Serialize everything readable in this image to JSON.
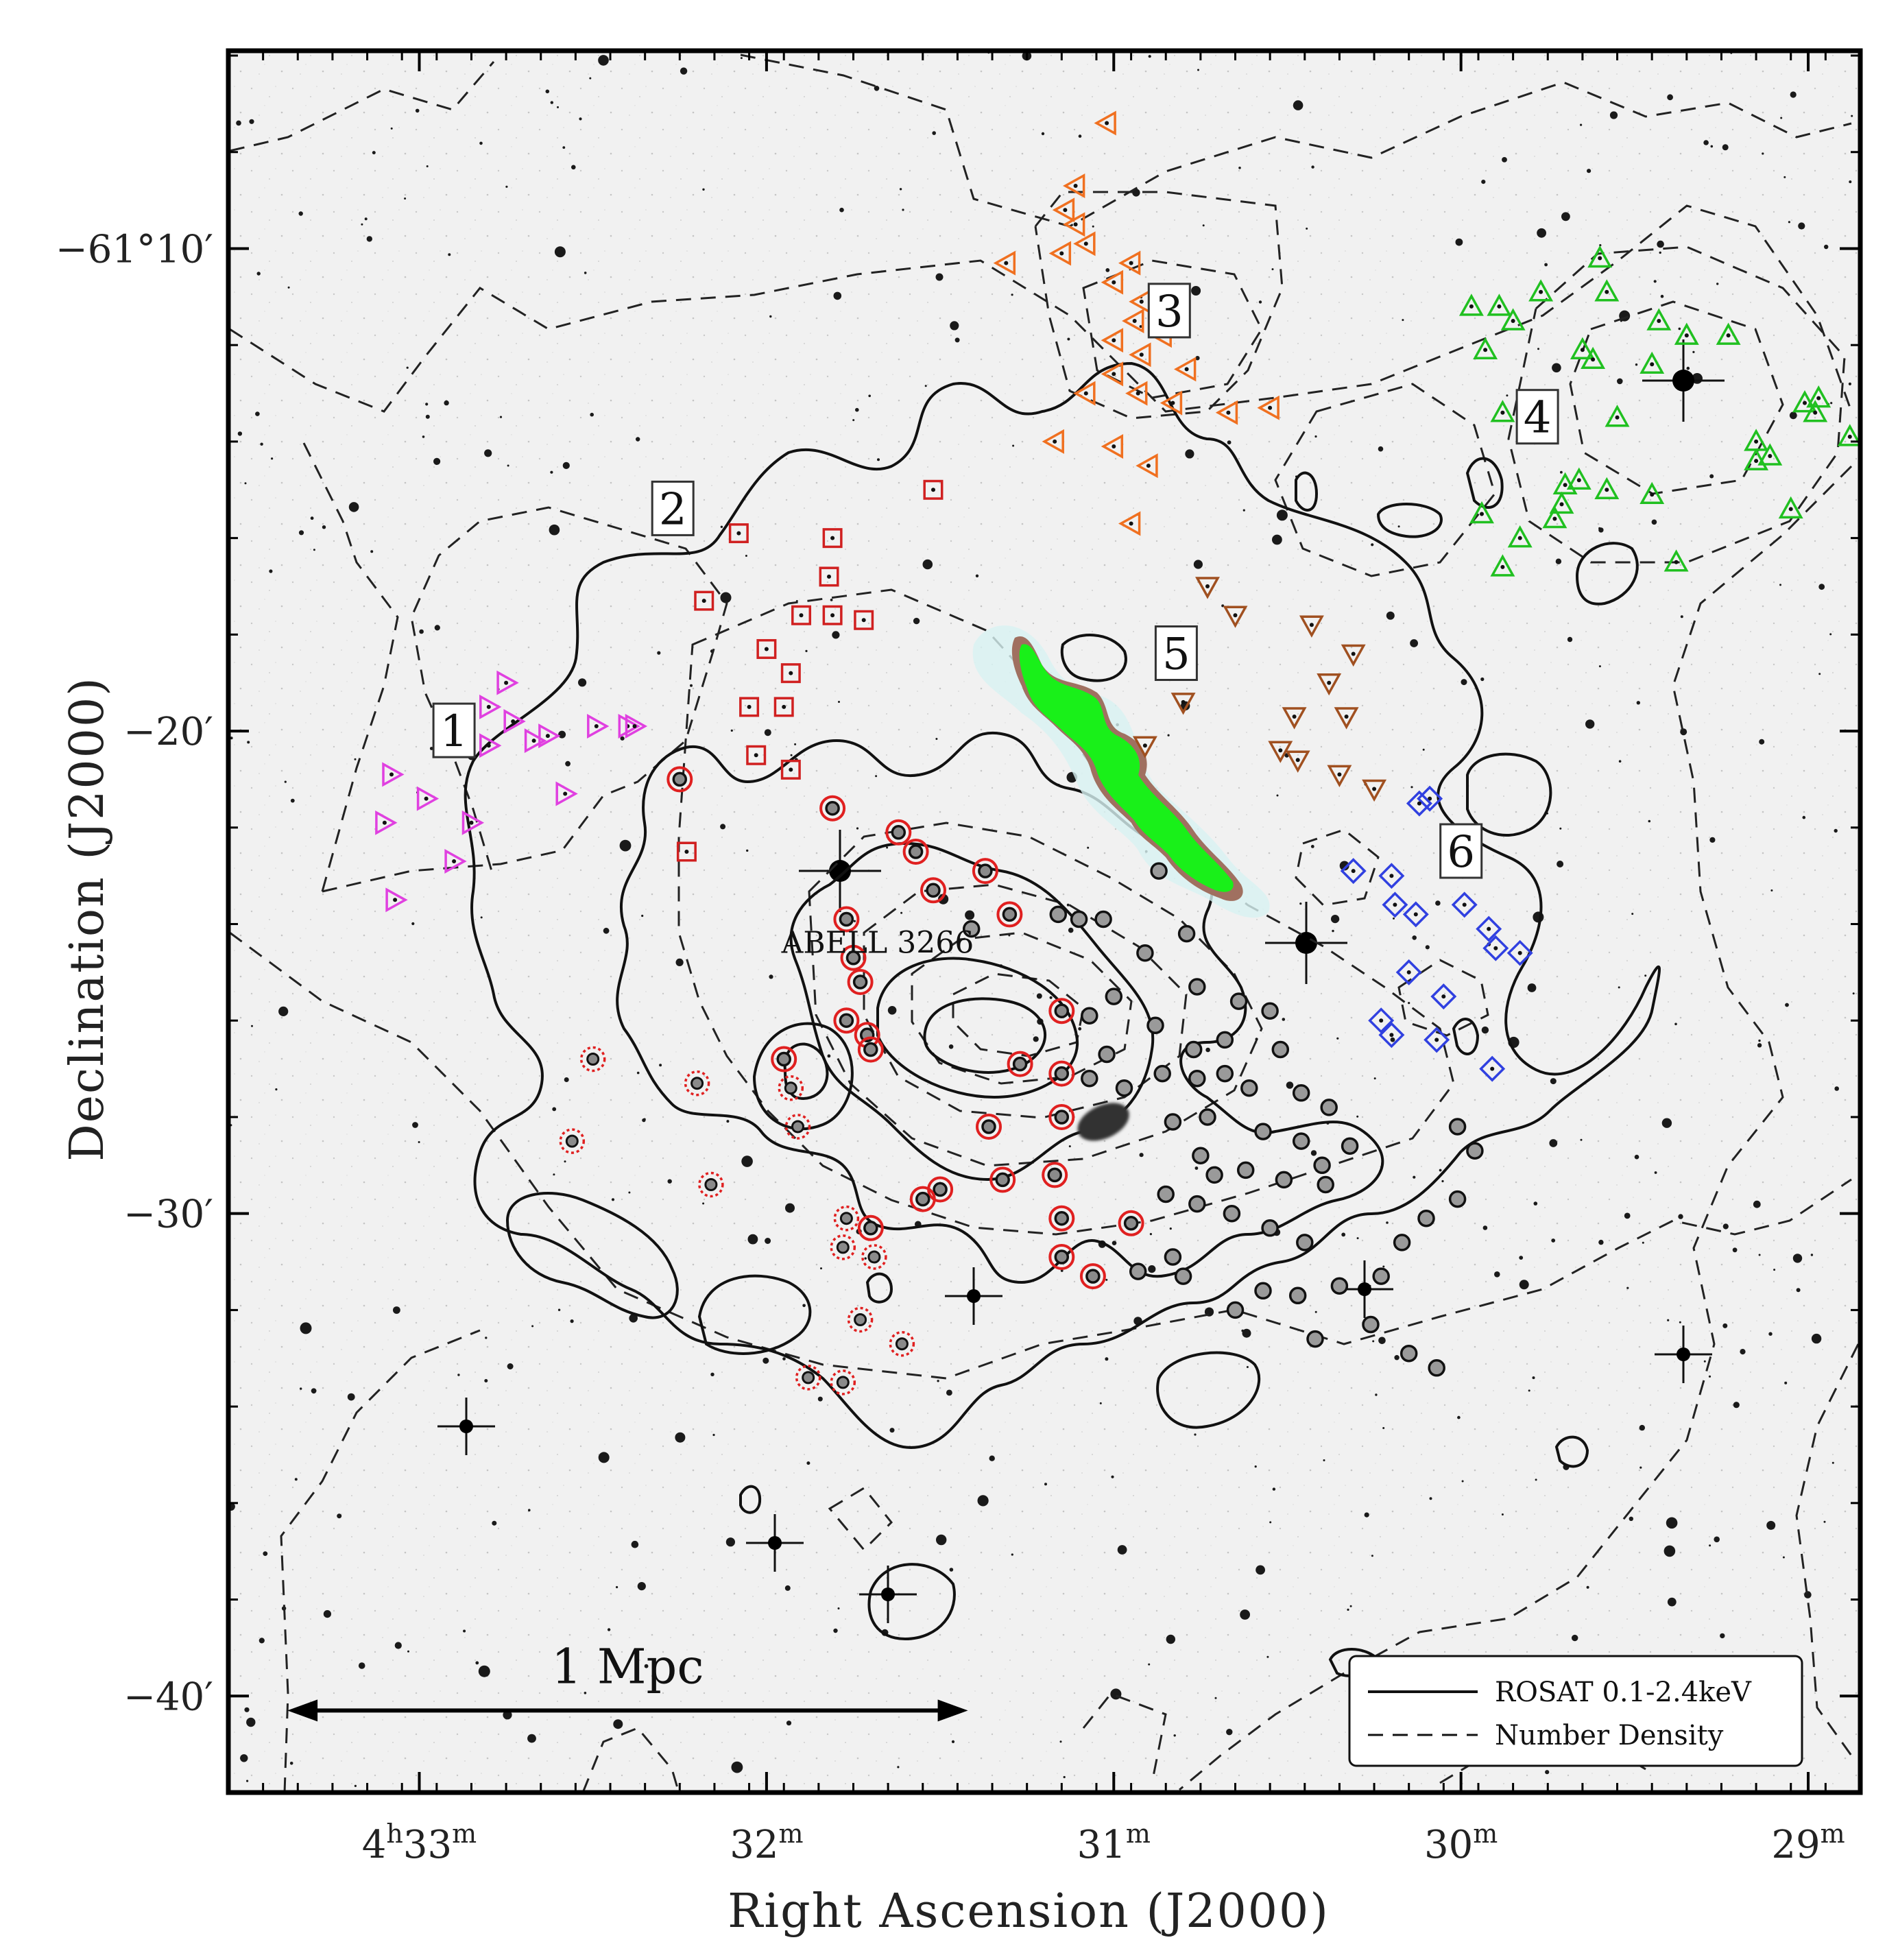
{
  "chart_data": {
    "type": "scatter",
    "title": "",
    "xlabel": "Right Ascension (J2000)",
    "ylabel": "Declination (J2000)",
    "x_ticks": [
      {
        "value": 4.55,
        "label": "4",
        "sup1": "h",
        "label2": "33",
        "sup2": "m"
      },
      {
        "value": 3.55,
        "label": "32",
        "sup1": "m",
        "label2": "",
        "sup2": ""
      },
      {
        "value": 2.55,
        "label": "31",
        "sup1": "m",
        "label2": "",
        "sup2": ""
      },
      {
        "value": 1.55,
        "label": "30",
        "sup1": "m",
        "label2": "",
        "sup2": ""
      },
      {
        "value": 0.55,
        "label": "29",
        "sup1": "m",
        "label2": "",
        "sup2": ""
      }
    ],
    "y_ticks": [
      {
        "value": -10,
        "label": "−61°10′"
      },
      {
        "value": -20,
        "label": "−20′"
      },
      {
        "value": -30,
        "label": "−30′"
      },
      {
        "value": -40,
        "label": "−40′"
      }
    ],
    "xlim": [
      5.1,
      0.4
    ],
    "ylim": [
      -42.0,
      -5.9
    ],
    "cluster_label": "ABELL 3266",
    "cluster_label_pos": [
      3.23,
      -24.6
    ],
    "scale_bar": {
      "label": "1 Mpc",
      "from": 4.93,
      "to": 2.97,
      "dec": -40.3
    },
    "legend": {
      "position": "bottom-right",
      "entries": [
        {
          "label": "ROSAT 0.1-2.4keV",
          "style": "solid"
        },
        {
          "label": "Number Density",
          "style": "dashed"
        }
      ]
    },
    "groups": [
      {
        "id": "1",
        "label": "1",
        "label_pos": [
          4.45,
          -20.0
        ],
        "marker": "triangle-right",
        "color": "#e040e0",
        "points": [
          [
            4.63,
            -20.9
          ],
          [
            4.53,
            -21.4
          ],
          [
            4.65,
            -21.9
          ],
          [
            4.45,
            -22.7
          ],
          [
            4.62,
            -23.5
          ],
          [
            4.4,
            -21.9
          ],
          [
            4.35,
            -20.3
          ],
          [
            4.35,
            -19.5
          ],
          [
            4.3,
            -19.0
          ],
          [
            4.28,
            -19.8
          ],
          [
            4.22,
            -20.2
          ],
          [
            4.18,
            -20.1
          ],
          [
            4.13,
            -21.3
          ],
          [
            4.04,
            -19.9
          ],
          [
            3.95,
            -19.9
          ],
          [
            3.93,
            -19.9
          ]
        ]
      },
      {
        "id": "2",
        "label": "2",
        "label_pos": [
          3.82,
          -15.4
        ],
        "marker": "square",
        "color": "#d02020",
        "points": [
          [
            3.07,
            -15.0
          ],
          [
            3.63,
            -15.9
          ],
          [
            3.36,
            -16.0
          ],
          [
            3.37,
            -16.8
          ],
          [
            3.73,
            -17.3
          ],
          [
            3.45,
            -17.6
          ],
          [
            3.36,
            -17.6
          ],
          [
            3.27,
            -17.7
          ],
          [
            3.55,
            -18.3
          ],
          [
            3.48,
            -18.8
          ],
          [
            3.5,
            -19.5
          ],
          [
            3.6,
            -19.5
          ],
          [
            3.58,
            -20.5
          ],
          [
            3.48,
            -20.8
          ],
          [
            3.78,
            -22.5
          ]
        ]
      },
      {
        "id": "3",
        "label": "3",
        "label_pos": [
          2.39,
          -11.3
        ],
        "marker": "triangle-left",
        "color": "#f07020",
        "points": [
          [
            2.57,
            -7.4
          ],
          [
            2.66,
            -8.7
          ],
          [
            2.69,
            -9.2
          ],
          [
            2.66,
            -9.5
          ],
          [
            2.63,
            -9.9
          ],
          [
            2.7,
            -10.1
          ],
          [
            2.5,
            -10.3
          ],
          [
            2.86,
            -10.3
          ],
          [
            2.55,
            -10.7
          ],
          [
            2.47,
            -11.1
          ],
          [
            2.49,
            -11.5
          ],
          [
            2.41,
            -11.8
          ],
          [
            2.55,
            -11.9
          ],
          [
            2.47,
            -12.2
          ],
          [
            2.34,
            -12.5
          ],
          [
            2.55,
            -12.6
          ],
          [
            2.63,
            -13.0
          ],
          [
            2.48,
            -13.0
          ],
          [
            2.38,
            -13.2
          ],
          [
            2.22,
            -13.4
          ],
          [
            2.1,
            -13.3
          ],
          [
            2.72,
            -14.0
          ],
          [
            2.55,
            -14.1
          ],
          [
            2.45,
            -14.5
          ],
          [
            2.5,
            -15.7
          ]
        ]
      },
      {
        "id": "4",
        "label": "4",
        "label_pos": [
          1.33,
          -13.5
        ],
        "marker": "triangle-up",
        "color": "#20c020",
        "points": [
          [
            1.15,
            -10.2
          ],
          [
            1.32,
            -10.9
          ],
          [
            1.13,
            -10.9
          ],
          [
            1.52,
            -11.2
          ],
          [
            1.44,
            -11.2
          ],
          [
            1.4,
            -11.5
          ],
          [
            0.98,
            -11.5
          ],
          [
            0.9,
            -11.8
          ],
          [
            0.78,
            -11.8
          ],
          [
            1.48,
            -12.1
          ],
          [
            1.2,
            -12.1
          ],
          [
            1.17,
            -12.3
          ],
          [
            1.0,
            -12.4
          ],
          [
            0.52,
            -13.1
          ],
          [
            0.56,
            -13.2
          ],
          [
            0.53,
            -13.4
          ],
          [
            1.43,
            -13.4
          ],
          [
            1.1,
            -13.5
          ],
          [
            0.43,
            -13.9
          ],
          [
            0.7,
            -14.0
          ],
          [
            0.66,
            -14.3
          ],
          [
            0.7,
            -14.4
          ],
          [
            1.21,
            -14.8
          ],
          [
            1.25,
            -14.9
          ],
          [
            1.13,
            -15.0
          ],
          [
            1.0,
            -15.1
          ],
          [
            1.26,
            -15.3
          ],
          [
            1.28,
            -15.6
          ],
          [
            1.49,
            -15.5
          ],
          [
            1.38,
            -16.0
          ],
          [
            1.43,
            -16.6
          ],
          [
            0.6,
            -15.4
          ],
          [
            0.93,
            -16.5
          ]
        ]
      },
      {
        "id": "5",
        "label": "5",
        "label_pos": [
          2.37,
          -18.4
        ],
        "marker": "triangle-down",
        "color": "#a05020",
        "points": [
          [
            2.28,
            -17.0
          ],
          [
            2.2,
            -17.6
          ],
          [
            1.98,
            -17.8
          ],
          [
            1.86,
            -18.4
          ],
          [
            1.93,
            -19.0
          ],
          [
            2.35,
            -19.4
          ],
          [
            2.03,
            -19.7
          ],
          [
            1.88,
            -19.7
          ],
          [
            2.46,
            -20.3
          ],
          [
            2.07,
            -20.4
          ],
          [
            2.02,
            -20.6
          ],
          [
            1.9,
            -20.9
          ],
          [
            1.8,
            -21.2
          ]
        ]
      },
      {
        "id": "6",
        "label": "6",
        "label_pos": [
          1.55,
          -22.5
        ],
        "marker": "diamond",
        "color": "#3040e0",
        "points": [
          [
            1.64,
            -21.4
          ],
          [
            1.67,
            -21.5
          ],
          [
            1.86,
            -22.9
          ],
          [
            1.75,
            -23.0
          ],
          [
            1.74,
            -23.6
          ],
          [
            1.68,
            -23.8
          ],
          [
            1.54,
            -23.6
          ],
          [
            1.47,
            -24.1
          ],
          [
            1.45,
            -24.5
          ],
          [
            1.38,
            -24.6
          ],
          [
            1.7,
            -25.0
          ],
          [
            1.6,
            -25.5
          ],
          [
            1.78,
            -26.0
          ],
          [
            1.75,
            -26.3
          ],
          [
            1.62,
            -26.4
          ],
          [
            1.46,
            -27.0
          ]
        ]
      }
    ],
    "core_members": {
      "red_ring": [
        [
          3.8,
          -21.0
        ],
        [
          3.36,
          -21.6
        ],
        [
          3.17,
          -22.1
        ],
        [
          3.12,
          -22.5
        ],
        [
          3.07,
          -23.3
        ],
        [
          3.32,
          -23.9
        ],
        [
          2.92,
          -22.9
        ],
        [
          3.3,
          -24.7
        ],
        [
          2.85,
          -23.8
        ],
        [
          3.28,
          -25.2
        ],
        [
          3.32,
          -26.0
        ],
        [
          3.26,
          -26.3
        ],
        [
          3.5,
          -26.8
        ],
        [
          3.25,
          -26.6
        ],
        [
          2.7,
          -27.1
        ],
        [
          2.7,
          -25.8
        ],
        [
          2.82,
          -26.9
        ],
        [
          2.7,
          -28.0
        ],
        [
          2.91,
          -28.2
        ],
        [
          2.72,
          -29.2
        ],
        [
          2.5,
          -30.2
        ],
        [
          3.05,
          -29.5
        ],
        [
          2.7,
          -30.1
        ],
        [
          2.7,
          -30.9
        ],
        [
          2.61,
          -31.3
        ],
        [
          3.25,
          -30.3
        ],
        [
          2.87,
          -29.3
        ],
        [
          3.1,
          -29.7
        ]
      ],
      "red_dotted": [
        [
          4.05,
          -26.8
        ],
        [
          4.11,
          -28.5
        ],
        [
          3.75,
          -27.3
        ],
        [
          3.71,
          -29.4
        ],
        [
          3.46,
          -28.2
        ],
        [
          3.48,
          -27.4
        ],
        [
          3.32,
          -30.1
        ],
        [
          3.33,
          -30.7
        ],
        [
          3.24,
          -30.9
        ],
        [
          3.28,
          -32.2
        ],
        [
          3.43,
          -33.4
        ],
        [
          3.16,
          -32.7
        ],
        [
          3.33,
          -33.5
        ]
      ],
      "black": [
        [
          2.96,
          -24.1
        ],
        [
          2.71,
          -23.8
        ],
        [
          2.65,
          -23.9
        ],
        [
          2.58,
          -23.9
        ],
        [
          2.42,
          -22.9
        ],
        [
          2.46,
          -24.6
        ],
        [
          2.34,
          -24.2
        ],
        [
          2.31,
          -25.3
        ],
        [
          2.19,
          -25.6
        ],
        [
          2.1,
          -25.8
        ],
        [
          2.55,
          -25.5
        ],
        [
          2.62,
          -25.9
        ],
        [
          2.43,
          -26.1
        ],
        [
          2.32,
          -26.6
        ],
        [
          2.23,
          -26.4
        ],
        [
          2.07,
          -26.6
        ],
        [
          2.57,
          -26.7
        ],
        [
          2.62,
          -27.2
        ],
        [
          2.52,
          -27.4
        ],
        [
          2.41,
          -27.1
        ],
        [
          2.31,
          -27.2
        ],
        [
          2.23,
          -27.1
        ],
        [
          2.16,
          -27.4
        ],
        [
          2.01,
          -27.5
        ],
        [
          1.93,
          -27.8
        ],
        [
          2.38,
          -28.1
        ],
        [
          2.28,
          -28.0
        ],
        [
          2.12,
          -28.3
        ],
        [
          2.01,
          -28.5
        ],
        [
          1.87,
          -28.6
        ],
        [
          1.95,
          -29.0
        ],
        [
          2.3,
          -28.8
        ],
        [
          2.26,
          -29.2
        ],
        [
          2.17,
          -29.1
        ],
        [
          2.06,
          -29.3
        ],
        [
          1.94,
          -29.4
        ],
        [
          2.4,
          -29.6
        ],
        [
          2.31,
          -29.8
        ],
        [
          2.21,
          -30.0
        ],
        [
          2.1,
          -30.3
        ],
        [
          2.0,
          -30.6
        ],
        [
          2.38,
          -30.9
        ],
        [
          2.48,
          -31.2
        ],
        [
          2.35,
          -31.3
        ],
        [
          2.12,
          -31.6
        ],
        [
          2.02,
          -31.7
        ],
        [
          1.9,
          -31.5
        ],
        [
          2.2,
          -32.0
        ],
        [
          1.97,
          -32.6
        ],
        [
          1.81,
          -32.3
        ],
        [
          1.7,
          -32.9
        ],
        [
          1.62,
          -33.2
        ],
        [
          1.78,
          -31.3
        ],
        [
          1.72,
          -30.6
        ],
        [
          1.65,
          -30.1
        ],
        [
          1.56,
          -29.7
        ],
        [
          1.51,
          -28.7
        ],
        [
          1.56,
          -28.2
        ]
      ]
    },
    "central_galaxy": [
      2.58,
      -28.1
    ]
  }
}
